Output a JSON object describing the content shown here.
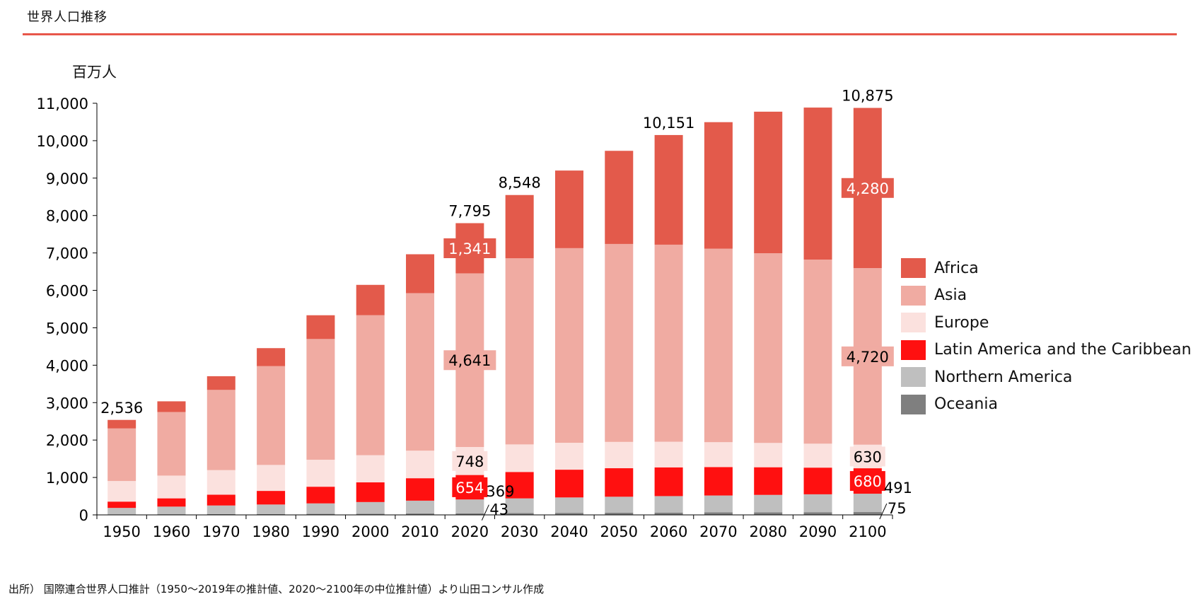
{
  "page_title": "世界人口推移",
  "unit_label": "百万人",
  "source_note": "出所） 国際連合世界人口推計（1950〜2019年の推計値、2020〜2100年の中位推計値）より山田コンサル作成",
  "colors": {
    "Africa": "#E35A4B",
    "Asia": "#F0ABA2",
    "Europe": "#FBE1DE",
    "Latin America and the Caribbean": "#FF1010",
    "Northern America": "#BFBFBF",
    "Oceania": "#7F7F7F",
    "title_rule": "#E8574A"
  },
  "chart_data": {
    "type": "bar",
    "stacked": true,
    "categories": [
      "1950",
      "1960",
      "1970",
      "1980",
      "1990",
      "2000",
      "2010",
      "2020",
      "2030",
      "2040",
      "2050",
      "2060",
      "2070",
      "2080",
      "2090",
      "2100"
    ],
    "ylabel": "百万人",
    "ylim": [
      0,
      11000
    ],
    "yticks": [
      0,
      1000,
      2000,
      3000,
      4000,
      5000,
      6000,
      7000,
      8000,
      9000,
      10000,
      11000
    ],
    "ytick_labels": [
      "0",
      "1,000",
      "2,000",
      "3,000",
      "4,000",
      "5,000",
      "6,000",
      "7,000",
      "8,000",
      "9,000",
      "10,000",
      "11,000"
    ],
    "grid": false,
    "legend_position": "right",
    "series": [
      {
        "name": "Oceania",
        "values": [
          13,
          16,
          20,
          23,
          27,
          31,
          37,
          43,
          49,
          54,
          58,
          62,
          66,
          69,
          72,
          75
        ]
      },
      {
        "name": "Northern America",
        "values": [
          173,
          205,
          231,
          254,
          280,
          312,
          343,
          369,
          392,
          412,
          427,
          440,
          452,
          465,
          478,
          491
        ]
      },
      {
        "name": "Latin America and the Caribbean",
        "values": [
          169,
          221,
          288,
          364,
          446,
          526,
          600,
          654,
          706,
          742,
          762,
          768,
          760,
          739,
          713,
          680
        ]
      },
      {
        "name": "Europe",
        "values": [
          550,
          608,
          657,
          694,
          721,
          726,
          736,
          748,
          736,
          719,
          703,
          685,
          665,
          650,
          640,
          630
        ]
      },
      {
        "name": "Asia",
        "values": [
          1405,
          1700,
          2144,
          2640,
          3226,
          3741,
          4210,
          4641,
          4974,
          5201,
          5290,
          5266,
          5171,
          5070,
          4920,
          4720
        ]
      },
      {
        "name": "Africa",
        "values": [
          228,
          285,
          366,
          481,
          635,
          811,
          1039,
          1341,
          1691,
          2074,
          2489,
          2930,
          3381,
          3782,
          4062,
          4280
        ]
      }
    ],
    "totals": [
      2536,
      3035,
      3706,
      4456,
      5335,
      6147,
      6965,
      7795,
      8548,
      9202,
      9729,
      10151,
      10495,
      10775,
      10885,
      10875
    ],
    "total_labels": [
      {
        "category": "1950",
        "text": "2,536"
      },
      {
        "category": "2020",
        "text": "7,795"
      },
      {
        "category": "2030",
        "text": "8,548"
      },
      {
        "category": "2060",
        "text": "10,151"
      },
      {
        "category": "2100",
        "text": "10,875"
      }
    ],
    "segment_labels": [
      {
        "category": "2020",
        "series": "Africa",
        "text": "1,341"
      },
      {
        "category": "2020",
        "series": "Asia",
        "text": "4,641"
      },
      {
        "category": "2020",
        "series": "Europe",
        "text": "748"
      },
      {
        "category": "2020",
        "series": "Latin America and the Caribbean",
        "text": "654"
      },
      {
        "category": "2020",
        "series": "Northern America",
        "text": "369"
      },
      {
        "category": "2020",
        "series": "Oceania",
        "text": "43"
      },
      {
        "category": "2100",
        "series": "Africa",
        "text": "4,280"
      },
      {
        "category": "2100",
        "series": "Asia",
        "text": "4,720"
      },
      {
        "category": "2100",
        "series": "Europe",
        "text": "630"
      },
      {
        "category": "2100",
        "series": "Latin America and the Caribbean",
        "text": "680"
      },
      {
        "category": "2100",
        "series": "Northern America",
        "text": "491"
      },
      {
        "category": "2100",
        "series": "Oceania",
        "text": "75"
      }
    ]
  }
}
